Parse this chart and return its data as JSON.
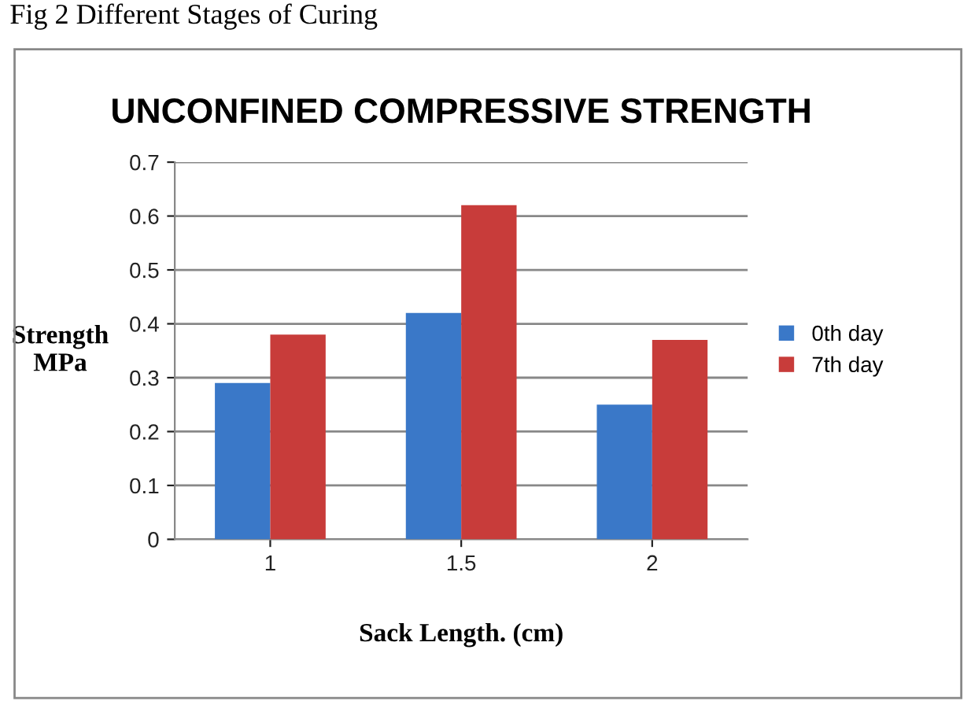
{
  "chart_data": {
    "type": "bar",
    "title": "UNCONFINED COMPRESSIVE STRENGTH",
    "xlabel": "Sack Length. (cm)",
    "ylabel": "Strength\nMPa",
    "annotations": [
      "Fig 2 Different Stages of Curing"
    ],
    "categories": [
      "1",
      "1.5",
      "2"
    ],
    "series": [
      {
        "name": "0th day",
        "color": "#3a78c8",
        "values": [
          0.29,
          0.42,
          0.25
        ]
      },
      {
        "name": "7th day",
        "color": "#c83c3a",
        "values": [
          0.38,
          0.62,
          0.37
        ]
      }
    ],
    "ylim": [
      0,
      0.7
    ],
    "yticks": [
      0,
      0.1,
      0.2,
      0.3,
      0.4,
      0.5,
      0.6,
      0.7
    ],
    "grid": "y",
    "legend": "right"
  }
}
